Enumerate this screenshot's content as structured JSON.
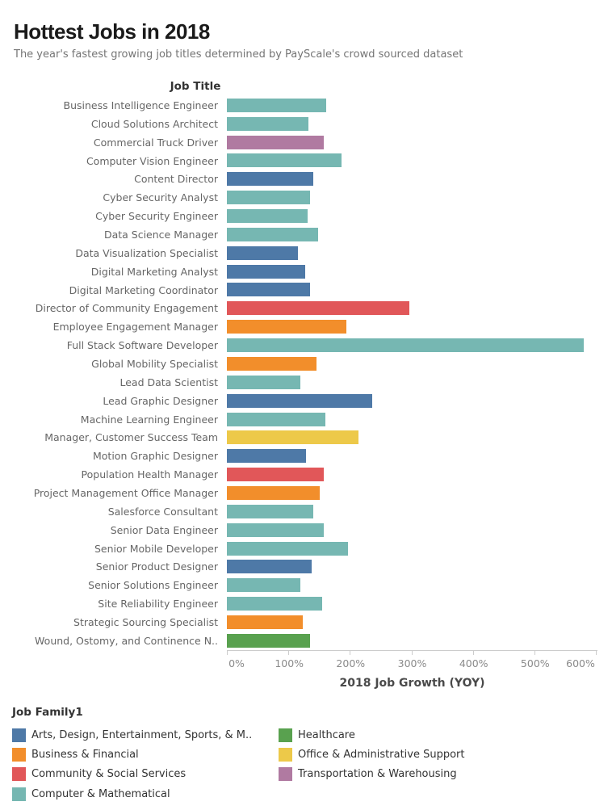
{
  "chart_data": {
    "type": "bar",
    "orientation": "horizontal",
    "title": "Hottest Jobs in 2018",
    "subtitle": "The year's fastest growing job titles determined by PayScale's crowd sourced dataset",
    "y_header": "Job Title",
    "xlabel": "2018 Job Growth (YOY)",
    "xlim": [
      0,
      600
    ],
    "x_tick_labels": [
      "0%",
      "100%",
      "200%",
      "300%",
      "400%",
      "500%",
      "600%"
    ],
    "grid": false,
    "categories": [
      "Business Intelligence Engineer",
      "Cloud Solutions Architect",
      "Commercial Truck Driver",
      "Computer Vision Engineer",
      "Content Director",
      "Cyber Security Analyst",
      "Cyber Security Engineer",
      "Data Science Manager",
      "Data Visualization Specialist",
      "Digital Marketing Analyst",
      "Digital Marketing Coordinator",
      "Director of Community Engagement",
      "Employee Engagement Manager",
      "Full Stack Software Developer",
      "Global Mobility Specialist",
      "Lead Data Scientist",
      "Lead Graphic Designer",
      "Machine Learning Engineer",
      "Manager, Customer Success Team",
      "Motion Graphic Designer",
      "Population Health Manager",
      "Project Management Office Manager",
      "Salesforce Consultant",
      "Senior Data Engineer",
      "Senior Mobile Developer",
      "Senior Product Designer",
      "Senior Solutions Engineer",
      "Site Reliability Engineer",
      "Strategic Sourcing Specialist",
      "Wound, Ostomy, and Continence N.."
    ],
    "values": [
      162,
      133,
      158,
      186,
      141,
      135,
      131,
      148,
      115,
      127,
      135,
      297,
      194,
      580,
      146,
      120,
      236,
      160,
      214,
      128,
      158,
      151,
      140,
      158,
      197,
      138,
      120,
      155,
      124,
      135
    ],
    "family": [
      "computer",
      "computer",
      "transportation",
      "computer",
      "arts",
      "computer",
      "computer",
      "computer",
      "arts",
      "arts",
      "arts",
      "community",
      "business",
      "computer",
      "business",
      "computer",
      "arts",
      "computer",
      "office",
      "arts",
      "community",
      "business",
      "computer",
      "computer",
      "computer",
      "arts",
      "computer",
      "computer",
      "business",
      "healthcare"
    ],
    "family_colors": {
      "arts": "#4e79a7",
      "business": "#f28e2b",
      "community": "#e15759",
      "computer": "#76b7b2",
      "healthcare": "#59a14f",
      "office": "#edc949",
      "transportation": "#b07aa1"
    },
    "legend_position": "bottom"
  },
  "legend": {
    "title": "Job Family1",
    "items": [
      {
        "label": "Arts, Design, Entertainment, Sports, & M..",
        "key": "arts",
        "color": "#4e79a7"
      },
      {
        "label": "Business & Financial",
        "key": "business",
        "color": "#f28e2b"
      },
      {
        "label": "Community & Social Services",
        "key": "community",
        "color": "#e15759"
      },
      {
        "label": "Computer & Mathematical",
        "key": "computer",
        "color": "#76b7b2"
      },
      {
        "label": "Healthcare",
        "key": "healthcare",
        "color": "#59a14f"
      },
      {
        "label": "Office & Administrative Support",
        "key": "office",
        "color": "#edc949"
      },
      {
        "label": "Transportation & Warehousing",
        "key": "transportation",
        "color": "#b07aa1"
      }
    ]
  }
}
